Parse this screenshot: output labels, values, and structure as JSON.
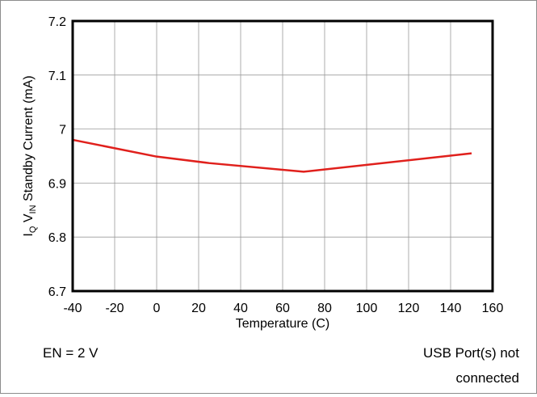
{
  "chart_data": {
    "type": "line",
    "title": "",
    "xlabel": "Temperature (C)",
    "ylabel": {
      "prefix": "I",
      "sub1": "Q",
      "mid": " V",
      "sub2": "IN",
      "suffix": " Standby Current (mA)"
    },
    "xlim": [
      -40,
      160
    ],
    "ylim": [
      6.7,
      7.2
    ],
    "x_ticks": [
      -40,
      -20,
      0,
      20,
      40,
      60,
      80,
      100,
      120,
      140,
      160
    ],
    "x_tick_labels": [
      "-40",
      "-20",
      "0",
      "20",
      "40",
      "60",
      "80",
      "100",
      "120",
      "140",
      "160"
    ],
    "y_ticks": [
      6.7,
      6.8,
      6.9,
      7.0,
      7.1,
      7.2
    ],
    "y_tick_labels": [
      "6.7",
      "6.8",
      "6.9",
      "7",
      "7.1",
      "7.2"
    ],
    "grid": true,
    "series": [
      {
        "color": "#e0201c",
        "x": [
          -40,
          0,
          25,
          70,
          150
        ],
        "y": [
          6.98,
          6.949,
          6.937,
          6.921,
          6.955
        ]
      }
    ]
  },
  "annotations": {
    "left": "EN = 2 V",
    "right_line1": "USB Port(s) not",
    "right_line2": "connected"
  }
}
